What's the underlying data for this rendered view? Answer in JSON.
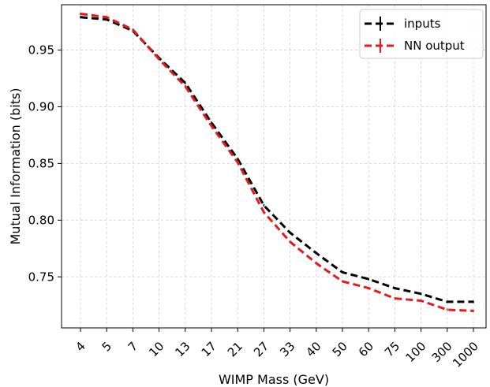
{
  "chart_data": {
    "type": "line",
    "title": "",
    "xlabel": "WIMP Mass (GeV)",
    "ylabel": "Mutual Information (bits)",
    "categories": [
      "4",
      "5",
      "7",
      "10",
      "13",
      "17",
      "21",
      "27",
      "33",
      "40",
      "50",
      "60",
      "75",
      "100",
      "300",
      "1000"
    ],
    "ylim": [
      0.705,
      0.99
    ],
    "yticks": [
      "0.75",
      "0.80",
      "0.85",
      "0.90",
      "0.95"
    ],
    "ytick_values": [
      0.75,
      0.8,
      0.85,
      0.9,
      0.95
    ],
    "grid": true,
    "legend_position": "top-right",
    "series": [
      {
        "name": "inputs",
        "color": "#000000",
        "style": "dashed with error bars",
        "values": [
          0.979,
          0.977,
          0.967,
          0.943,
          0.921,
          0.886,
          0.854,
          0.813,
          0.789,
          0.771,
          0.754,
          0.748,
          0.74,
          0.735,
          0.728,
          0.728
        ]
      },
      {
        "name": "NN output",
        "color": "#e41a1c",
        "style": "dashed with error bars",
        "values": [
          0.982,
          0.979,
          0.968,
          0.942,
          0.918,
          0.883,
          0.851,
          0.807,
          0.781,
          0.762,
          0.746,
          0.74,
          0.731,
          0.729,
          0.721,
          0.72
        ]
      }
    ]
  }
}
